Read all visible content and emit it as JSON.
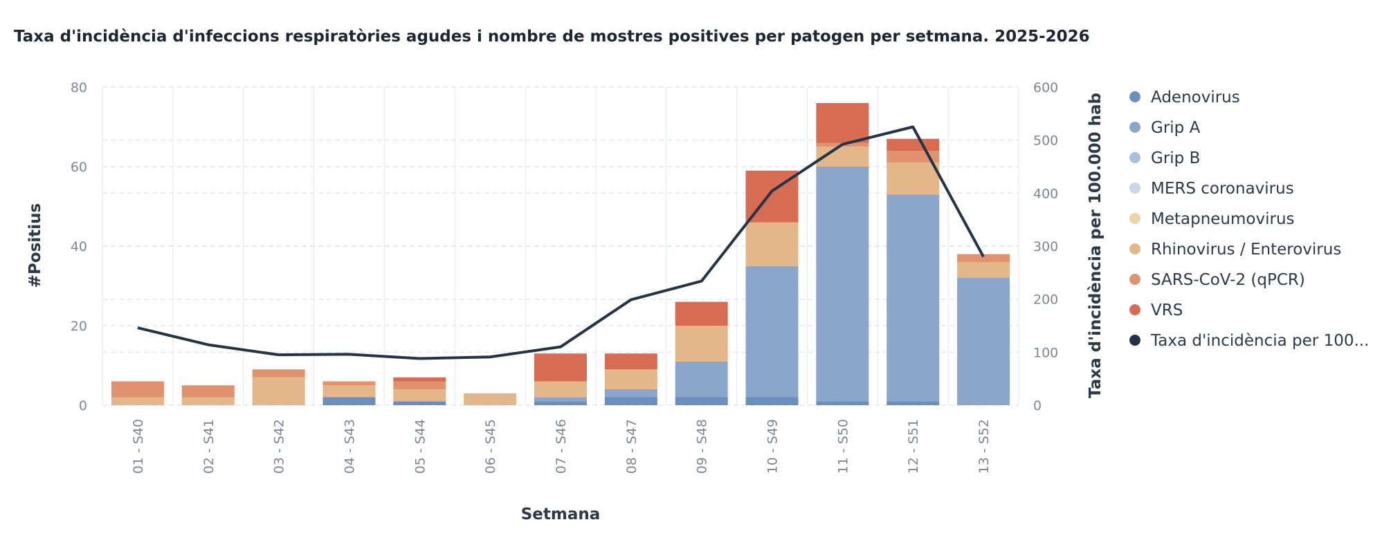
{
  "chart_data": {
    "type": "bar",
    "title": "Taxa d'incidència d'infeccions respiratòries agudes i nombre de mostres positives per patogen per setmana. 2025-2026",
    "xlabel": "Setmana",
    "ylabel": "#Positius",
    "y2label": "Taxa d'incidència per 100.000 hab",
    "ylim": [
      0,
      80
    ],
    "y2lim": [
      0,
      600
    ],
    "yticks": [
      0,
      20,
      40,
      60,
      80
    ],
    "y2ticks": [
      0,
      100,
      200,
      300,
      400,
      500,
      600
    ],
    "stacked": true,
    "categories": [
      "01 - S40",
      "02 - S41",
      "03 - S42",
      "04 - S43",
      "05 - S44",
      "06 - S45",
      "07 - S46",
      "08 - S47",
      "09 - S48",
      "10 - S49",
      "11 - S50",
      "12 - S51",
      "13 - S52"
    ],
    "series": [
      {
        "name": "Adenovirus",
        "color": "#6a8fbf",
        "values": [
          0,
          0,
          0,
          2,
          1,
          0,
          1,
          2,
          2,
          2,
          1,
          1,
          0
        ]
      },
      {
        "name": "Grip A",
        "color": "#8aa7cb",
        "values": [
          0,
          0,
          0,
          0,
          0,
          0,
          1,
          2,
          9,
          33,
          59,
          52,
          32
        ]
      },
      {
        "name": "Grip B",
        "color": "#a9bfdb",
        "values": [
          0,
          0,
          0,
          0,
          0,
          0,
          0,
          0,
          0,
          0,
          0,
          0,
          0
        ]
      },
      {
        "name": "MERS coronavirus",
        "color": "#c8d8e8",
        "values": [
          0,
          0,
          0,
          0,
          0,
          0,
          0,
          0,
          0,
          0,
          0,
          0,
          0
        ]
      },
      {
        "name": "Metapneumovirus",
        "color": "#ecd3a8",
        "values": [
          0,
          0,
          0,
          0,
          0,
          0,
          0,
          0,
          0,
          0,
          0,
          0,
          0
        ]
      },
      {
        "name": "Rhinovirus / Enterovirus",
        "color": "#e3b78a",
        "values": [
          2,
          2,
          7,
          3,
          3,
          3,
          4,
          5,
          9,
          11,
          5,
          8,
          4
        ]
      },
      {
        "name": "SARS-CoV-2 (qPCR)",
        "color": "#e0936e",
        "values": [
          4,
          3,
          2,
          1,
          2,
          0,
          0,
          0,
          0,
          0,
          1,
          3,
          2
        ]
      },
      {
        "name": "VRS",
        "color": "#d86c52",
        "values": [
          0,
          0,
          0,
          0,
          1,
          0,
          7,
          4,
          6,
          13,
          10,
          3,
          0
        ]
      }
    ],
    "line_series": {
      "name": "Taxa d'incidència per 100...",
      "axis": "right",
      "color": "#233447",
      "values": [
        146,
        114,
        95,
        96,
        88,
        91,
        110,
        199,
        234,
        404,
        492,
        525,
        280
      ]
    },
    "legend_position": "right",
    "grid": true
  }
}
